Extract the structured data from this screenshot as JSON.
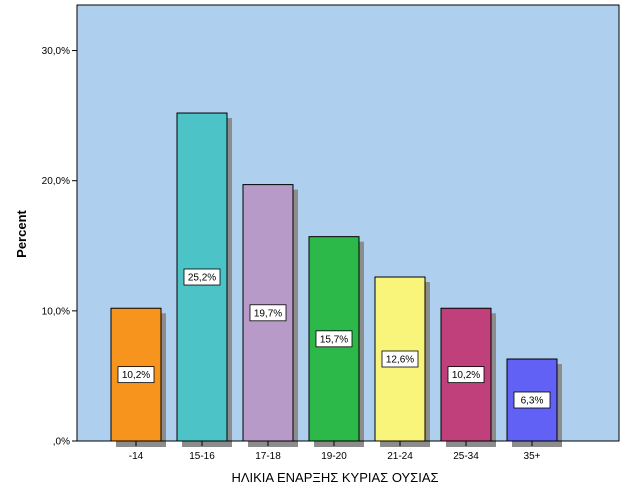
{
  "chart_data": {
    "type": "bar",
    "title": "",
    "xlabel": "ΗΛΙΚΙΑ ΕΝΑΡΞΗΣ ΚΥΡΙΑΣ ΟΥΣΙΑΣ",
    "ylabel": "Percent",
    "ylim": [
      0,
      33.5
    ],
    "yticks": [
      0,
      10,
      20,
      30
    ],
    "ytick_labels": [
      ",0%",
      "10,0%",
      "20,0%",
      "30,0%"
    ],
    "categories": [
      "-14",
      "15-16",
      "17-18",
      "19-20",
      "21-24",
      "25-34",
      "35+"
    ],
    "values": [
      10.2,
      25.2,
      19.7,
      15.7,
      12.6,
      10.2,
      6.3
    ],
    "data_labels": [
      "10,2%",
      "25,2%",
      "19,7%",
      "15,7%",
      "12,6%",
      "10,2%",
      "6,3%"
    ],
    "colors": [
      "#f7941d",
      "#4cc3c6",
      "#b89ac8",
      "#2db84a",
      "#f8f57a",
      "#c0407c",
      "#6161f5"
    ],
    "shadow_color": "#8c8c8c",
    "plot_background": "#aecfee",
    "grid": false,
    "legend": "none"
  }
}
